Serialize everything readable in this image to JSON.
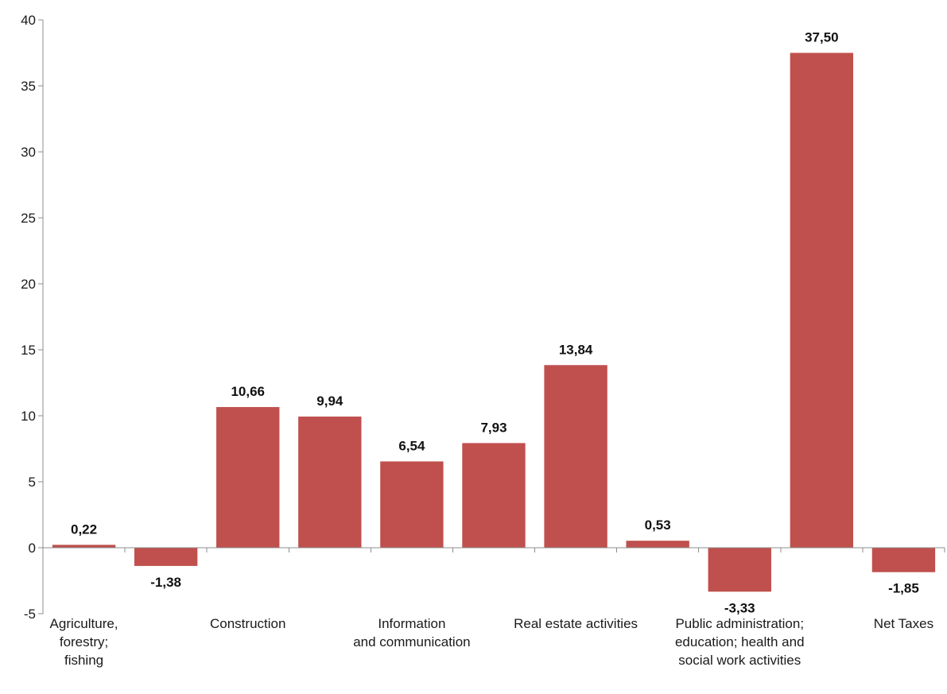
{
  "chart_data": {
    "type": "bar",
    "title": "",
    "xlabel": "",
    "ylabel": "",
    "ylim": [
      -5,
      40
    ],
    "yticks": [
      -5,
      0,
      5,
      10,
      15,
      20,
      25,
      30,
      35,
      40
    ],
    "grid": false,
    "bar_color": "#c0504d",
    "categories": [
      "Agriculture, forestry; fishing",
      "",
      "Construction",
      "",
      "Information and communication",
      "",
      "Real estate activities",
      "",
      "Public administration; education; health and social work activities",
      "",
      "Net Taxes"
    ],
    "category_label_lines": [
      [
        "Agriculture,",
        "forestry;",
        "fishing"
      ],
      [],
      [
        "Construction"
      ],
      [],
      [
        "Information",
        "and communication"
      ],
      [],
      [
        "Real estate activities"
      ],
      [],
      [
        "Public administration;",
        "education; health and",
        "social work activities"
      ],
      [],
      [
        "Net Taxes"
      ]
    ],
    "values": [
      0.22,
      -1.38,
      10.66,
      9.94,
      6.54,
      7.93,
      13.84,
      0.53,
      -3.33,
      37.5,
      -1.85
    ],
    "value_labels": [
      "0,22",
      "-1,38",
      "10,66",
      "9,94",
      "6,54",
      "7,93",
      "13,84",
      "0,53",
      "-3,33",
      "37,50",
      "-1,85"
    ]
  }
}
